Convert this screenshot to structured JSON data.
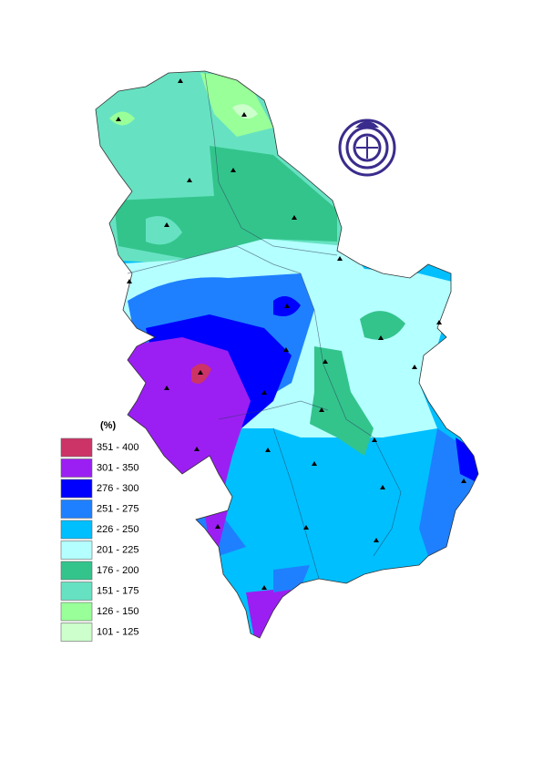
{
  "legend": {
    "title": "(%)",
    "items": [
      {
        "label": "351 - 400",
        "color": "#cc3366"
      },
      {
        "label": "301 - 350",
        "color": "#9b1ff2"
      },
      {
        "label": "276 - 300",
        "color": "#0000ff"
      },
      {
        "label": "251 - 275",
        "color": "#1e80ff"
      },
      {
        "label": "226 - 250",
        "color": "#00bfff"
      },
      {
        "label": "201 - 225",
        "color": "#b4ffff"
      },
      {
        "label": "176 - 200",
        "color": "#33c48c"
      },
      {
        "label": "151 - 175",
        "color": "#66e2c2"
      },
      {
        "label": "126 - 150",
        "color": "#99ff99"
      },
      {
        "label": "101 - 125",
        "color": "#ccffcc"
      }
    ]
  }
}
